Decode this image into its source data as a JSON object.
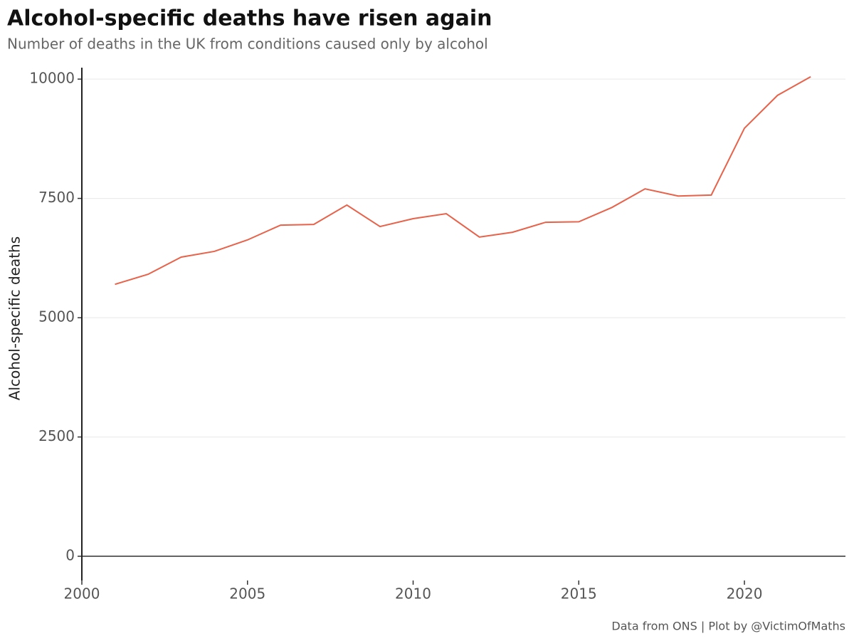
{
  "chart_data": {
    "type": "line",
    "title": "Alcohol-specific deaths have risen again",
    "subtitle": "Number of deaths in the UK from conditions caused only by alcohol",
    "y_label": "Alcohol-specific deaths",
    "caption": "Data from ONS | Plot by @VictimOfMaths",
    "x": [
      2001,
      2002,
      2003,
      2004,
      2005,
      2006,
      2007,
      2008,
      2009,
      2010,
      2011,
      2012,
      2013,
      2014,
      2015,
      2016,
      2017,
      2018,
      2019,
      2020,
      2021,
      2022
    ],
    "series": [
      {
        "color": "#e8624a",
        "values": [
          5700,
          5910,
          6270,
          6390,
          6630,
          6940,
          6955,
          7360,
          6910,
          7075,
          7180,
          6690,
          6790,
          7000,
          7010,
          7310,
          7700,
          7550,
          7570,
          8970,
          9660,
          10050
        ]
      }
    ],
    "xlim": [
      2000,
      2023.05
    ],
    "xticks": [
      2000,
      2005,
      2010,
      2015,
      2020
    ],
    "ylim": [
      -507,
      10240
    ],
    "yticks": [
      0,
      2500,
      5000,
      7500,
      10000
    ],
    "grid": true
  }
}
